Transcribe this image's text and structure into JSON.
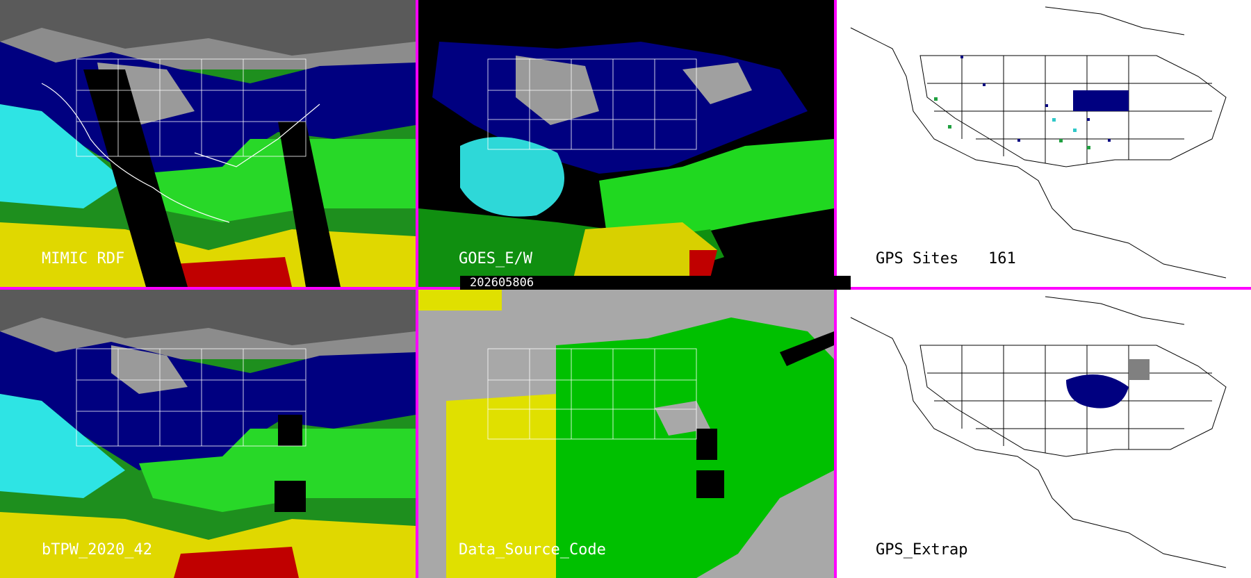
{
  "timestamp": "202605806",
  "divider_color": "#ff00ff",
  "panels": [
    {
      "id": "mimic-rdf",
      "label": "MIMIC RDF",
      "style": "tpw"
    },
    {
      "id": "goes-ew",
      "label": "GOES_E/W",
      "style": "goes"
    },
    {
      "id": "gps-sites",
      "label": "GPS Sites",
      "count": "161",
      "style": "gps"
    },
    {
      "id": "btpw",
      "label": "bTPW_2020_42",
      "style": "tpw"
    },
    {
      "id": "data-source",
      "label": "Data_Source_Code",
      "style": "dsc"
    },
    {
      "id": "gps-extrap",
      "label": "GPS_Extrap",
      "style": "gpsx"
    }
  ],
  "palette": {
    "gray": "#8a8a8a",
    "navy": "#000080",
    "blue": "#1030d0",
    "cyan": "#30e8e8",
    "green": "#30e030",
    "yellow": "#e8e000",
    "red": "#c00000",
    "black": "#000000",
    "dsc_gray": "#a8a8a8",
    "dsc_green": "#00c000",
    "dsc_yellow": "#e0e000"
  }
}
